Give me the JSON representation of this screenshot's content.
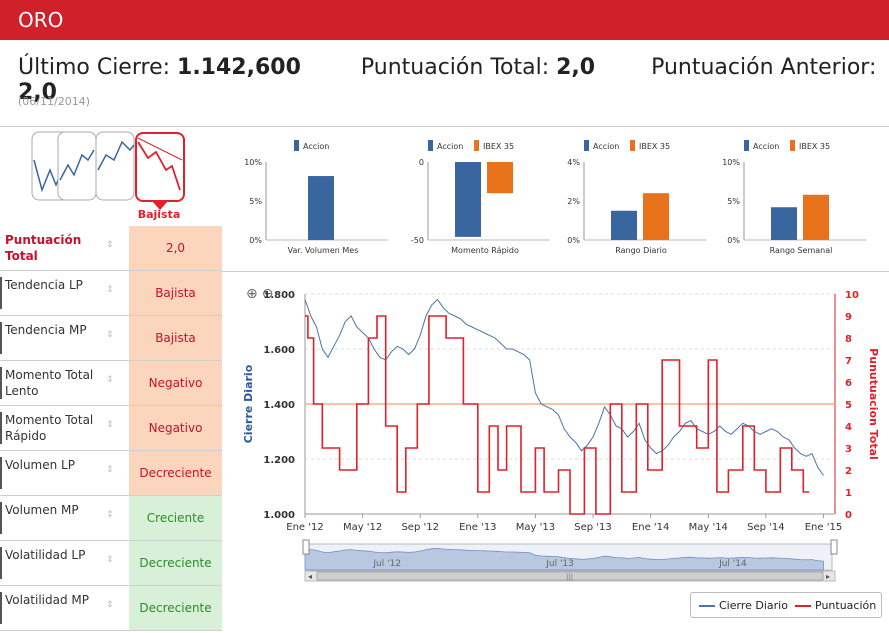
{
  "header": {
    "title": "ORO"
  },
  "summary": {
    "cierre_label": "Último Cierre:",
    "cierre_value": "1.142,600",
    "puntuacion_label": "Puntuación Total:",
    "puntuacion_value": "2,0",
    "anterior_label": "Puntuación Anterior:",
    "anterior_value": "2,0",
    "date": "(06/11/2014)"
  },
  "trend": {
    "label": "Bajista"
  },
  "table": {
    "rows": [
      {
        "label": "Puntuación Total",
        "value": "2,0",
        "style": "orange"
      },
      {
        "label": "Tendencia LP",
        "value": "Bajista",
        "style": "orange"
      },
      {
        "label": "Tendencia MP",
        "value": "Bajista",
        "style": "orange"
      },
      {
        "label": "Momento Total Lento",
        "value": "Negativo",
        "style": "orange"
      },
      {
        "label": "Momento Total Rápido",
        "value": "Negativo",
        "style": "orange"
      },
      {
        "label": "Volumen LP",
        "value": "Decreciente",
        "style": "orange"
      },
      {
        "label": "Volumen MP",
        "value": "Creciente",
        "style": "green"
      },
      {
        "label": "Volatilidad LP",
        "value": "Decreciente",
        "style": "green"
      },
      {
        "label": "Volatilidad MP",
        "value": "Decreciente",
        "style": "green"
      }
    ],
    "sort_glyph": "⇕"
  },
  "colors": {
    "accent": "#d0202a",
    "accion": "#3a66a0",
    "ibex": "#e8731a",
    "price_line": "#4a74aa",
    "score_line": "#e0202a",
    "threshold": "#f0a070"
  },
  "minicharts": [
    {
      "legend": [
        "Accion"
      ],
      "yticks": [
        "10%",
        "5%",
        "0%"
      ],
      "ylim": [
        0,
        10
      ],
      "values": [
        8.2
      ],
      "xlabel": "Var. Volumen Mes"
    },
    {
      "legend": [
        "Accion",
        "IBEX 35"
      ],
      "yticks": [
        "0",
        "-50"
      ],
      "ylim": [
        -50,
        0
      ],
      "values": [
        -48,
        -20
      ],
      "xlabel": "Momento Rápido"
    },
    {
      "legend": [
        "Accion",
        "IBEX 35"
      ],
      "yticks": [
        "4%",
        "2%",
        "0%"
      ],
      "ylim": [
        0,
        4
      ],
      "values": [
        1.5,
        2.4
      ],
      "xlabel": "Rango Diario"
    },
    {
      "legend": [
        "Accion",
        "IBEX 35"
      ],
      "yticks": [
        "10%",
        "5%",
        "0%"
      ],
      "ylim": [
        0,
        10
      ],
      "values": [
        4.2,
        5.8
      ],
      "xlabel": "Rango Semanal"
    }
  ],
  "chart_data": {
    "type": "line",
    "x_ticks": [
      "Ene '12",
      "May '12",
      "Sep '12",
      "Ene '13",
      "May '13",
      "Sep '13",
      "Ene '14",
      "May '14",
      "Sep '14",
      "Ene '15"
    ],
    "left_axis": {
      "label": "Cierre Diario",
      "ticks": [
        "1.800",
        "1.600",
        "1.400",
        "1.200",
        "1.000"
      ],
      "ylim": [
        1000,
        1800
      ]
    },
    "right_axis": {
      "label": "Punutuacion Total",
      "ticks": [
        "10",
        "9",
        "8",
        "7",
        "6",
        "5",
        "4",
        "3",
        "2",
        "1",
        "0"
      ],
      "ylim": [
        0,
        10
      ]
    },
    "threshold": 1400,
    "series": [
      {
        "name": "Cierre Diario",
        "axis": "left",
        "t": [
          0,
          0.1,
          0.2,
          0.3,
          0.4,
          0.5,
          0.6,
          0.7,
          0.8,
          0.9,
          1.0,
          1.1,
          1.2,
          1.3,
          1.4,
          1.5,
          1.6,
          1.7,
          1.8,
          1.9,
          2.0,
          2.1,
          2.2,
          2.3,
          2.4,
          2.5,
          2.6,
          2.7,
          2.8,
          2.9,
          3.0,
          3.1,
          3.2,
          3.3,
          3.4,
          3.5,
          3.6,
          3.7,
          3.8,
          3.9,
          4.0,
          4.1,
          4.2,
          4.3,
          4.4,
          4.5,
          4.6,
          4.7,
          4.8,
          4.9,
          5.0,
          5.1,
          5.2,
          5.3,
          5.4,
          5.5,
          5.6,
          5.7,
          5.8,
          5.9,
          6.0,
          6.1,
          6.2,
          6.3,
          6.4,
          6.5,
          6.6,
          6.7,
          6.8,
          6.9,
          7.0,
          7.1,
          7.2,
          7.3,
          7.4,
          7.5,
          7.6,
          7.7,
          7.8,
          7.9,
          8.0,
          8.1,
          8.2,
          8.3,
          8.4,
          8.5,
          8.6,
          8.7,
          8.8,
          8.9,
          9.0
        ],
        "values": [
          1780,
          1720,
          1680,
          1600,
          1570,
          1610,
          1650,
          1700,
          1720,
          1680,
          1660,
          1640,
          1600,
          1570,
          1560,
          1590,
          1610,
          1600,
          1580,
          1600,
          1650,
          1720,
          1760,
          1780,
          1750,
          1730,
          1720,
          1710,
          1690,
          1680,
          1670,
          1660,
          1650,
          1640,
          1620,
          1600,
          1600,
          1590,
          1580,
          1560,
          1440,
          1400,
          1390,
          1380,
          1360,
          1310,
          1280,
          1260,
          1230,
          1250,
          1280,
          1330,
          1390,
          1360,
          1320,
          1310,
          1280,
          1300,
          1330,
          1270,
          1240,
          1220,
          1230,
          1250,
          1280,
          1300,
          1330,
          1340,
          1310,
          1300,
          1290,
          1300,
          1320,
          1300,
          1290,
          1310,
          1330,
          1320,
          1300,
          1290,
          1300,
          1310,
          1300,
          1280,
          1270,
          1240,
          1220,
          1210,
          1220,
          1170,
          1140
        ]
      },
      {
        "name": "Puntuación",
        "axis": "right",
        "t": [
          0,
          0.05,
          0.05,
          0.15,
          0.15,
          0.3,
          0.3,
          0.6,
          0.6,
          0.9,
          0.9,
          1.1,
          1.1,
          1.25,
          1.25,
          1.4,
          1.4,
          1.6,
          1.6,
          1.75,
          1.75,
          1.95,
          1.95,
          2.15,
          2.15,
          2.45,
          2.45,
          2.75,
          2.75,
          3.0,
          3.0,
          3.2,
          3.2,
          3.35,
          3.35,
          3.5,
          3.5,
          3.75,
          3.75,
          4.0,
          4.0,
          4.15,
          4.15,
          4.4,
          4.4,
          4.6,
          4.6,
          4.85,
          4.85,
          5.05,
          5.05,
          5.3,
          5.3,
          5.5,
          5.5,
          5.75,
          5.75,
          5.95,
          5.95,
          6.2,
          6.2,
          6.5,
          6.5,
          6.8,
          6.8,
          7.0,
          7.0,
          7.15,
          7.15,
          7.35,
          7.35,
          7.6,
          7.6,
          7.8,
          7.8,
          8.0,
          8.0,
          8.25,
          8.25,
          8.45,
          8.45,
          8.65,
          8.65,
          8.75
        ],
        "values": [
          9,
          9,
          8,
          8,
          5,
          5,
          3,
          3,
          2,
          2,
          5,
          5,
          8,
          8,
          9,
          9,
          4,
          4,
          1,
          1,
          3,
          3,
          5,
          5,
          9,
          9,
          8,
          8,
          5,
          5,
          1,
          1,
          4,
          4,
          2,
          2,
          4,
          4,
          1,
          1,
          3,
          3,
          1,
          1,
          2,
          2,
          0,
          0,
          3,
          3,
          0,
          0,
          5,
          5,
          1,
          1,
          5,
          5,
          2,
          2,
          7,
          7,
          4,
          4,
          3,
          3,
          7,
          7,
          1,
          1,
          2,
          2,
          4,
          4,
          2,
          2,
          1,
          1,
          3,
          3,
          2,
          2,
          1,
          1
        ]
      }
    ]
  },
  "navigator": {
    "labels": [
      "Jul '12",
      "Jul '13",
      "Jul '14"
    ]
  },
  "legend": {
    "items": [
      {
        "label": "Cierre Diario"
      },
      {
        "label": "Puntuación"
      }
    ]
  }
}
